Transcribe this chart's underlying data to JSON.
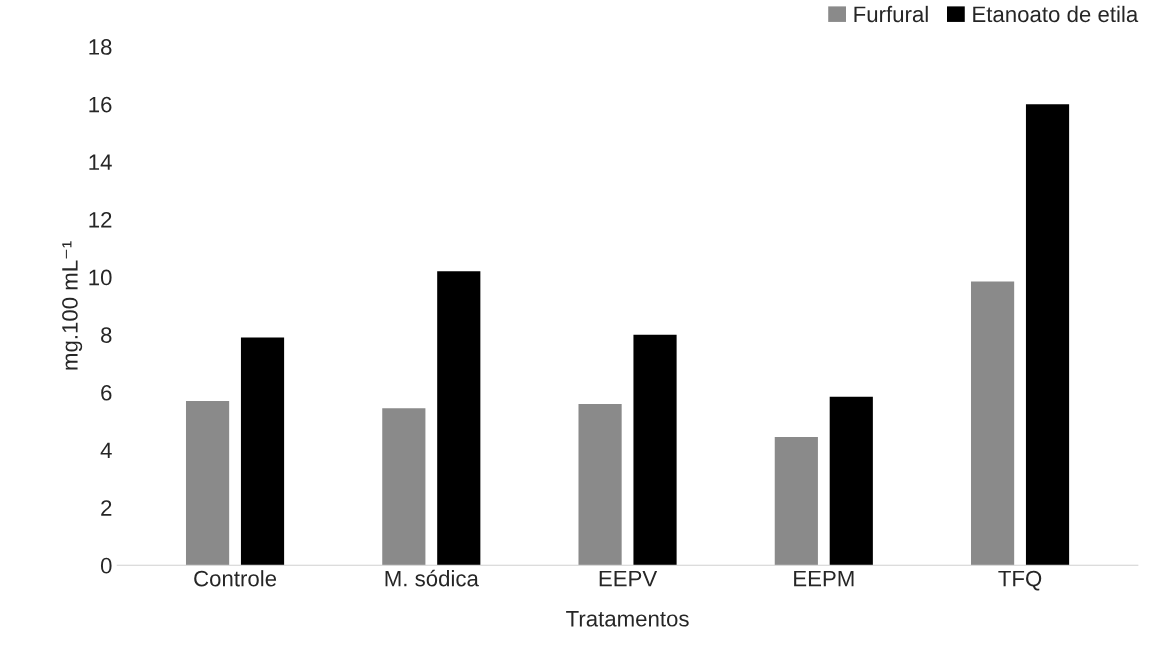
{
  "chart_data": {
    "type": "bar",
    "xlabel": "Tratamentos",
    "ylabel": "mg.100 mL⁻¹",
    "categories": [
      "Controle",
      "M. sódica",
      "EEPV",
      "EEPM",
      "TFQ"
    ],
    "series": [
      {
        "name": "Furfural",
        "color": "#8a8a8a",
        "values": [
          5.7,
          5.45,
          5.6,
          4.45,
          9.85
        ]
      },
      {
        "name": "Etanoato de etila",
        "color": "#000000",
        "values": [
          7.9,
          10.2,
          8.0,
          5.85,
          16.0
        ]
      }
    ],
    "ylim": [
      0,
      18
    ],
    "yticks": [
      0,
      2,
      4,
      6,
      8,
      10,
      12,
      14,
      16,
      18
    ],
    "grid": false,
    "legend": "top right"
  }
}
